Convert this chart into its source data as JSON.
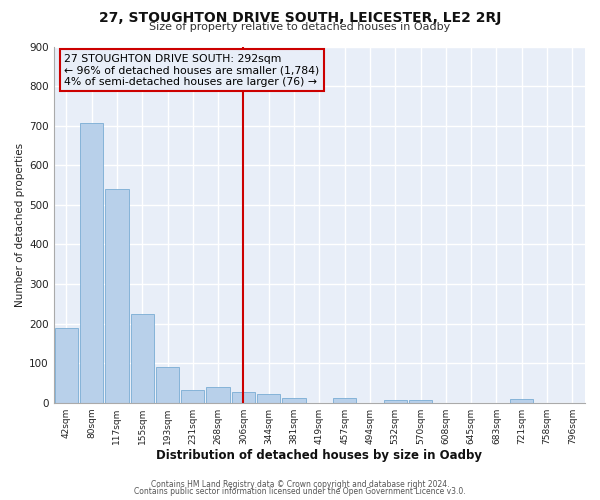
{
  "title_main": "27, STOUGHTON DRIVE SOUTH, LEICESTER, LE2 2RJ",
  "title_sub": "Size of property relative to detached houses in Oadby",
  "xlabel": "Distribution of detached houses by size in Oadby",
  "ylabel": "Number of detached properties",
  "bar_labels": [
    "42sqm",
    "80sqm",
    "117sqm",
    "155sqm",
    "193sqm",
    "231sqm",
    "268sqm",
    "306sqm",
    "344sqm",
    "381sqm",
    "419sqm",
    "457sqm",
    "494sqm",
    "532sqm",
    "570sqm",
    "608sqm",
    "645sqm",
    "683sqm",
    "721sqm",
    "758sqm",
    "796sqm"
  ],
  "bar_values": [
    190,
    707,
    540,
    225,
    90,
    32,
    40,
    27,
    22,
    12,
    0,
    11,
    0,
    8,
    8,
    0,
    0,
    0,
    10,
    0,
    0
  ],
  "bar_color": "#b8d0ea",
  "bar_edge_color": "#7aacd4",
  "vline_x": 7.0,
  "vline_color": "#cc0000",
  "annotation_title": "27 STOUGHTON DRIVE SOUTH: 292sqm",
  "annotation_line1": "← 96% of detached houses are smaller (1,784)",
  "annotation_line2": "4% of semi-detached houses are larger (76) →",
  "annotation_box_edge": "#cc0000",
  "ylim": [
    0,
    900
  ],
  "yticks": [
    0,
    100,
    200,
    300,
    400,
    500,
    600,
    700,
    800,
    900
  ],
  "footer1": "Contains HM Land Registry data © Crown copyright and database right 2024.",
  "footer2": "Contains public sector information licensed under the Open Government Licence v3.0.",
  "bg_color": "#e8eef8",
  "plot_bg_color": "#e8eef8",
  "grid_color": "#ffffff"
}
